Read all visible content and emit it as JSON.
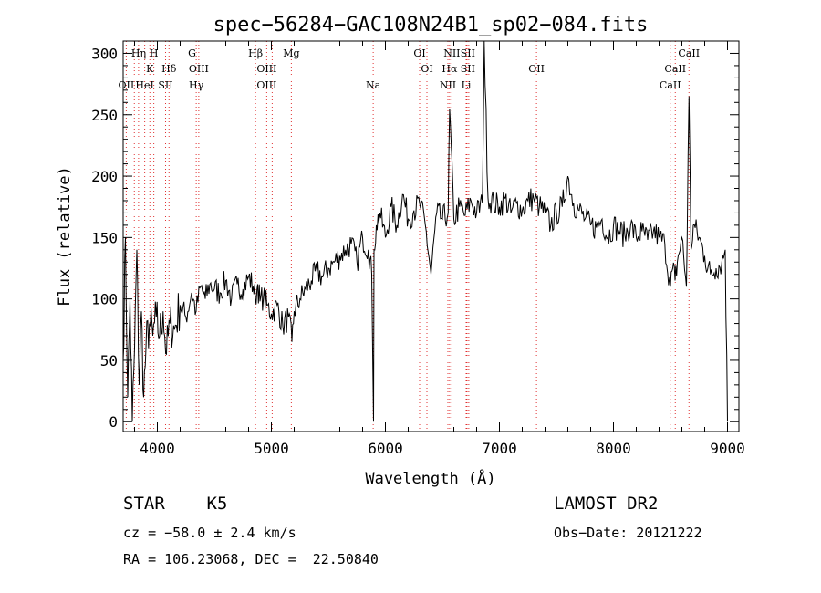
{
  "chart_data": {
    "type": "line",
    "title": "spec−56284−GAC108N24B1_sp02−084.fits",
    "xlabel": "Wavelength (Å)",
    "ylabel": "Flux (relative)",
    "xlim": [
      3700,
      9100
    ],
    "ylim": [
      -8,
      310
    ],
    "xticks": [
      4000,
      5000,
      6000,
      7000,
      8000,
      9000
    ],
    "yticks": [
      0,
      50,
      100,
      150,
      200,
      250,
      300
    ],
    "grid": false,
    "series": [
      {
        "x": [
          3700,
          3720,
          3740,
          3760,
          3780,
          3800,
          3820,
          3840,
          3860,
          3880,
          3900,
          3930,
          3960,
          3990,
          4020,
          4050,
          4080,
          4110,
          4150,
          4200,
          4250,
          4300,
          4340,
          4380,
          4420,
          4460,
          4500,
          4550,
          4600,
          4650,
          4700,
          4750,
          4800,
          4840,
          4860,
          4880,
          4900,
          4930,
          4960,
          5000,
          5050,
          5100,
          5150,
          5180,
          5200,
          5250,
          5300,
          5350,
          5400,
          5450,
          5500,
          5550,
          5600,
          5650,
          5700,
          5750,
          5800,
          5850,
          5880,
          5890,
          5896,
          5900,
          5920,
          5950,
          6000,
          6050,
          6100,
          6150,
          6200,
          6250,
          6300,
          6350,
          6400,
          6450,
          6500,
          6550,
          6563,
          6600,
          6650,
          6700,
          6750,
          6800,
          6850,
          6866,
          6900,
          6950,
          7000,
          7050,
          7100,
          7150,
          7200,
          7250,
          7300,
          7350,
          7400,
          7450,
          7500,
          7550,
          7600,
          7650,
          7700,
          7750,
          7800,
          7850,
          7900,
          7950,
          8000,
          8050,
          8100,
          8150,
          8200,
          8250,
          8300,
          8350,
          8400,
          8450,
          8500,
          8520,
          8540,
          8560,
          8600,
          8640,
          8662,
          8680,
          8700,
          8750,
          8800,
          8850,
          8900,
          8950,
          8980,
          9000
        ],
        "values": [
          50,
          150,
          20,
          100,
          0,
          60,
          140,
          30,
          90,
          20,
          60,
          80,
          70,
          85,
          70,
          90,
          55,
          80,
          75,
          95,
          85,
          105,
          90,
          110,
          100,
          112,
          108,
          105,
          115,
          100,
          112,
          108,
          118,
          110,
          100,
          112,
          98,
          102,
          95,
          88,
          95,
          78,
          85,
          65,
          90,
          100,
          108,
          115,
          122,
          118,
          125,
          130,
          135,
          140,
          145,
          130,
          150,
          140,
          120,
          40,
          0,
          140,
          160,
          170,
          150,
          175,
          160,
          185,
          165,
          172,
          178,
          160,
          120,
          170,
          165,
          170,
          255,
          165,
          175,
          168,
          180,
          170,
          178,
          310,
          182,
          178,
          175,
          182,
          170,
          178,
          172,
          180,
          182,
          175,
          170,
          160,
          170,
          175,
          200,
          178,
          172,
          165,
          160,
          158,
          165,
          150,
          160,
          155,
          152,
          160,
          150,
          155,
          148,
          155,
          150,
          145,
          110,
          125,
          115,
          130,
          150,
          110,
          265,
          140,
          160,
          150,
          135,
          120,
          125,
          130,
          140,
          0
        ]
      }
    ],
    "line_labels": [
      {
        "name": "OII",
        "wl": 3727,
        "row": 3
      },
      {
        "name": "Hη",
        "wl": 3836,
        "row": 1
      },
      {
        "name": "K",
        "wl": 3934,
        "row": 2
      },
      {
        "name": "H",
        "wl": 3969,
        "row": 1
      },
      {
        "name": "HeI",
        "wl": 3889,
        "row": 3
      },
      {
        "name": "SII",
        "wl": 4072,
        "row": 3
      },
      {
        "name": "Hδ",
        "wl": 4102,
        "row": 2
      },
      {
        "name": "G",
        "wl": 4304,
        "row": 1
      },
      {
        "name": "OIII",
        "wl": 4363,
        "row": 2
      },
      {
        "name": "Hγ",
        "wl": 4341,
        "row": 3
      },
      {
        "name": "Hβ",
        "wl": 4861,
        "row": 1
      },
      {
        "name": "OIII",
        "wl": 4959,
        "row": 2
      },
      {
        "name": "OIII",
        "wl": 4959,
        "row": 3
      },
      {
        "name": "Mg",
        "wl": 5175,
        "row": 1
      },
      {
        "name": "Na",
        "wl": 5893,
        "row": 3
      },
      {
        "name": "OI",
        "wl": 6300,
        "row": 1
      },
      {
        "name": "OI",
        "wl": 6364,
        "row": 2
      },
      {
        "name": "NII",
        "wl": 6583,
        "row": 1
      },
      {
        "name": "SII",
        "wl": 6723,
        "row": 1
      },
      {
        "name": "Hα",
        "wl": 6563,
        "row": 2
      },
      {
        "name": "SII",
        "wl": 6723,
        "row": 2
      },
      {
        "name": "NII",
        "wl": 6548,
        "row": 3
      },
      {
        "name": "Li",
        "wl": 6708,
        "row": 3
      },
      {
        "name": "OII",
        "wl": 7325,
        "row": 2
      },
      {
        "name": "CaII",
        "wl": 8662,
        "row": 1
      },
      {
        "name": "CaII",
        "wl": 8542,
        "row": 2
      },
      {
        "name": "CaII",
        "wl": 8498,
        "row": 3
      }
    ],
    "line_marks": [
      3727,
      3798,
      3835,
      3889,
      3934,
      3969,
      4072,
      4102,
      4304,
      4341,
      4363,
      4861,
      4959,
      5007,
      5175,
      5893,
      6300,
      6364,
      6548,
      6563,
      6583,
      6708,
      6716,
      6731,
      7325,
      8498,
      8542,
      8662
    ],
    "colors": {
      "axis": "#000000",
      "spectrum": "#000000",
      "line_marks": "#e03030"
    }
  },
  "footer": {
    "object_class": "STAR    K5",
    "velocity": "cz = −58.0 ± 2.4 km/s",
    "coords": "RA = 106.23068, DEC =  22.50840",
    "survey": "LAMOST DR2",
    "obs_date": "Obs−Date: 20121222"
  }
}
